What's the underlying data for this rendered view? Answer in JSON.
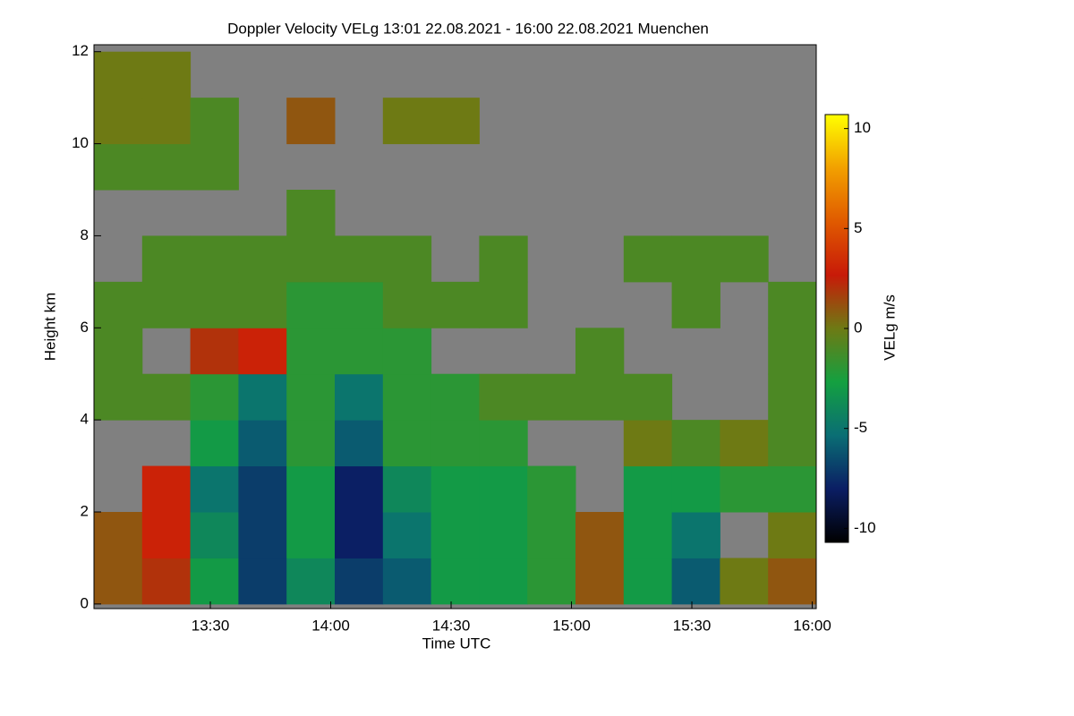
{
  "chart_data": {
    "type": "heatmap",
    "title": "Doppler Velocity VELg   13:01 22.08.2021 - 16:00 22.08.2021 Muenchen",
    "x_label": "Time UTC",
    "y_label": "Height km",
    "colorbar_label": "VELg m/s",
    "xlim": [
      781,
      961
    ],
    "xticks": [
      {
        "value": 810,
        "label": "13:30"
      },
      {
        "value": 840,
        "label": "14:00"
      },
      {
        "value": 870,
        "label": "14:30"
      },
      {
        "value": 900,
        "label": "15:00"
      },
      {
        "value": 930,
        "label": "15:30"
      },
      {
        "value": 960,
        "label": "16:00"
      }
    ],
    "ylim": [
      -0.1,
      12.15
    ],
    "yticks": [
      0,
      2,
      4,
      6,
      8,
      10,
      12
    ],
    "clim": [
      -10.7,
      10.7
    ],
    "cticks": [
      10,
      5,
      0,
      -5,
      -10
    ],
    "colormap": [
      "#000000",
      "#0b1e64",
      "#0a6e74",
      "#14a040",
      "#6e7a14",
      "#c81a08",
      "#e05a00",
      "#f2a000",
      "#ffff00"
    ],
    "missing_color": "#808080",
    "x": [
      787,
      799,
      811,
      823,
      835,
      847,
      859,
      871,
      883,
      895,
      907,
      919,
      931,
      943,
      955
    ],
    "y": [
      0.5,
      1.5,
      2.5,
      3.5,
      4.5,
      5.5,
      6.5,
      7.5,
      8.5,
      9.5,
      10.5,
      11.5
    ],
    "z": [
      [
        1,
        2,
        -3,
        -7,
        -4,
        -7,
        -6,
        -3,
        -3,
        -2,
        1,
        -3,
        -6,
        0,
        1
      ],
      [
        1,
        3,
        -4,
        -7,
        -3,
        -8,
        -5,
        -3,
        -3,
        -2,
        1,
        -3,
        -5,
        null,
        0
      ],
      [
        null,
        3,
        -5,
        -7,
        -3,
        -8,
        -4,
        -3,
        -3,
        -2,
        null,
        -3,
        -3,
        -2,
        -2
      ],
      [
        null,
        null,
        -3,
        -6,
        -2,
        -6,
        -2,
        -2,
        -2,
        null,
        null,
        0,
        -1,
        0,
        -1
      ],
      [
        -1,
        -1,
        -2,
        -5,
        -2,
        -5,
        -2,
        -2,
        -1,
        -1,
        -1,
        -1,
        null,
        null,
        -1
      ],
      [
        -1,
        null,
        2,
        3,
        -2,
        -2,
        -2,
        null,
        null,
        null,
        -1,
        null,
        null,
        null,
        -1
      ],
      [
        -1,
        -1,
        -1,
        -1,
        -2,
        -2,
        -1,
        -1,
        -1,
        null,
        null,
        null,
        -1,
        null,
        -1
      ],
      [
        null,
        -1,
        -1,
        -1,
        -1,
        -1,
        -1,
        null,
        -1,
        null,
        null,
        -1,
        -1,
        -1,
        null
      ],
      [
        null,
        null,
        null,
        null,
        -1,
        null,
        null,
        null,
        null,
        null,
        null,
        null,
        null,
        null,
        null
      ],
      [
        -1,
        -1,
        -1,
        null,
        null,
        null,
        null,
        null,
        null,
        null,
        null,
        null,
        null,
        null,
        null
      ],
      [
        0,
        0,
        -1,
        null,
        1,
        null,
        0,
        0,
        null,
        null,
        null,
        null,
        null,
        null,
        null
      ],
      [
        0,
        0,
        null,
        null,
        null,
        null,
        null,
        null,
        null,
        null,
        null,
        null,
        null,
        null,
        null
      ]
    ]
  }
}
